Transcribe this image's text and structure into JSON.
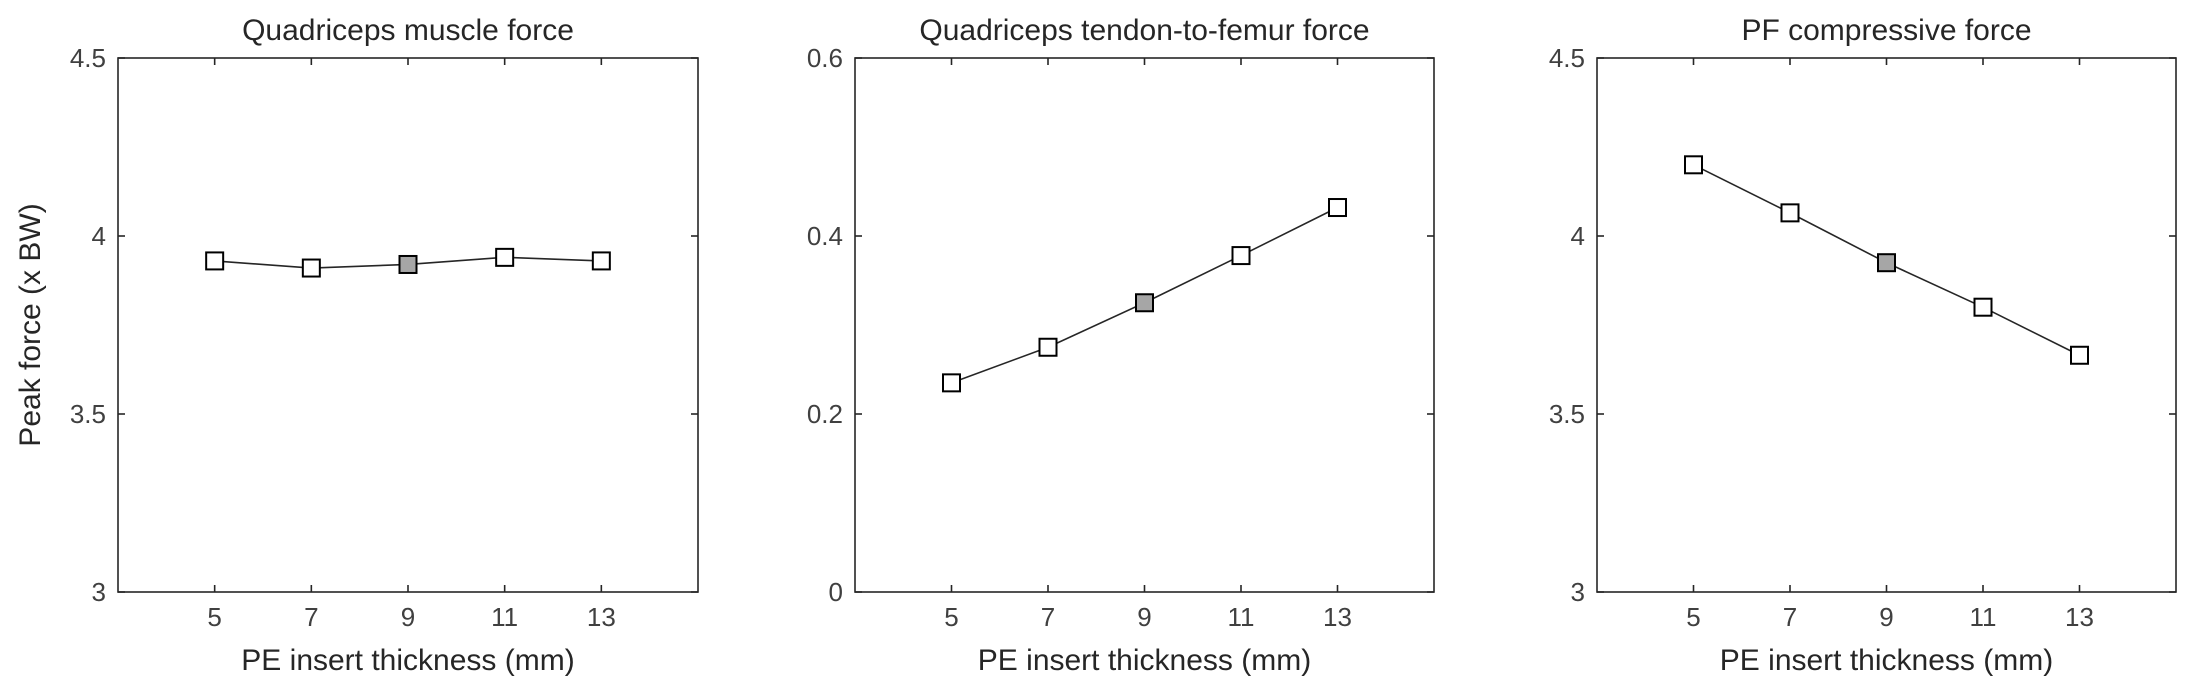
{
  "chart_data": [
    {
      "type": "line",
      "title": "Quadriceps muscle force",
      "xlabel": "PE insert thickness (mm)",
      "ylabel": "Peak force (x BW)",
      "xlim": [
        3,
        15
      ],
      "ylim": [
        3,
        4.5
      ],
      "xticks": [
        5,
        7,
        9,
        11,
        13
      ],
      "yticks": [
        "3",
        "3.5",
        "4",
        "4.5"
      ],
      "x": [
        5,
        7,
        9,
        11,
        13
      ],
      "values": [
        3.93,
        3.91,
        3.92,
        3.94,
        3.93
      ],
      "marker": "square",
      "highlighted_x": 9,
      "marker_fill": "#ffffff",
      "highlight_fill": "#a6a6a6",
      "grid": false
    },
    {
      "type": "line",
      "title": "Quadriceps tendon-to-femur force",
      "xlabel": "PE insert thickness (mm)",
      "ylabel": "",
      "xlim": [
        3,
        15
      ],
      "ylim": [
        0,
        0.6
      ],
      "xticks": [
        5,
        7,
        9,
        11,
        13
      ],
      "yticks": [
        "0",
        "0.2",
        "0.4",
        "0.6"
      ],
      "x": [
        5,
        7,
        9,
        11,
        13
      ],
      "values": [
        0.235,
        0.275,
        0.325,
        0.378,
        0.432
      ],
      "marker": "square",
      "highlighted_x": 9,
      "marker_fill": "#ffffff",
      "highlight_fill": "#a6a6a6",
      "grid": false
    },
    {
      "type": "line",
      "title": "PF compressive force",
      "xlabel": "PE insert thickness (mm)",
      "ylabel": "",
      "xlim": [
        3,
        15
      ],
      "ylim": [
        3,
        4.5
      ],
      "xticks": [
        5,
        7,
        9,
        11,
        13
      ],
      "yticks": [
        "3",
        "3.5",
        "4",
        "4.5"
      ],
      "x": [
        5,
        7,
        9,
        11,
        13
      ],
      "values": [
        4.2,
        4.065,
        3.925,
        3.8,
        3.665
      ],
      "marker": "square",
      "highlighted_x": 9,
      "marker_fill": "#ffffff",
      "highlight_fill": "#a6a6a6",
      "grid": false
    }
  ]
}
